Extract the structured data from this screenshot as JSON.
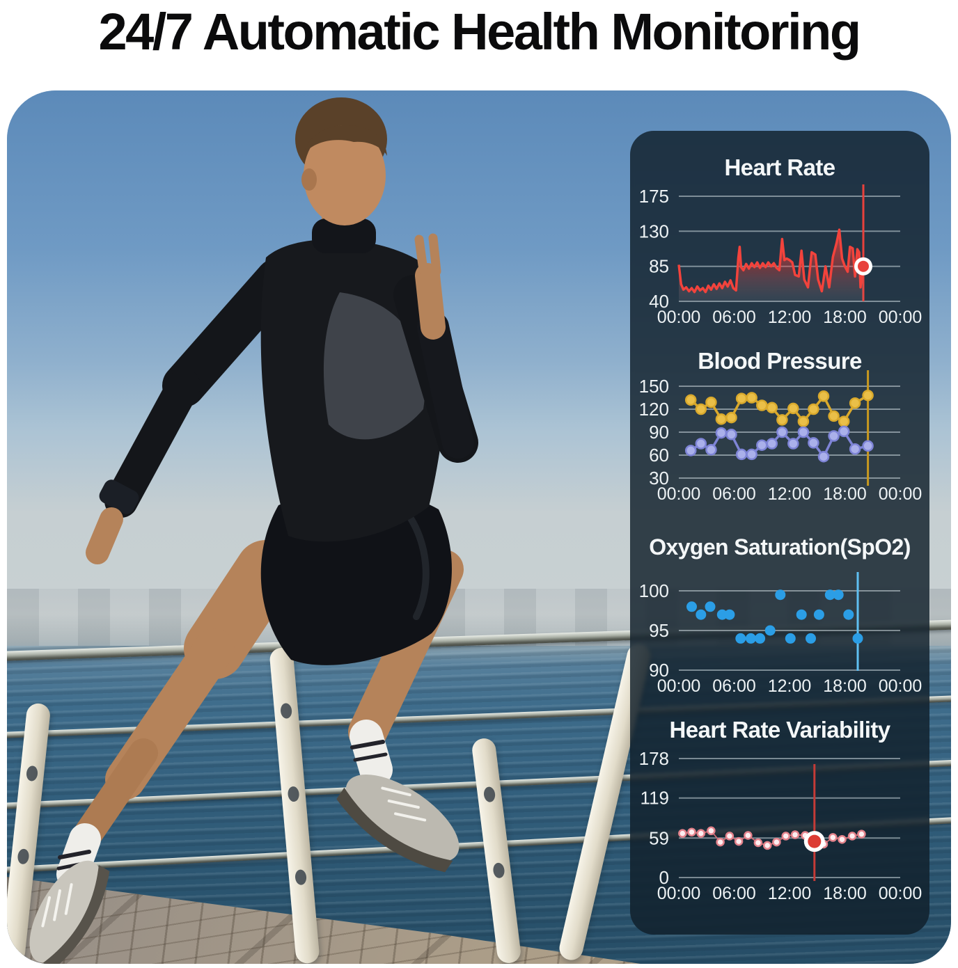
{
  "page": {
    "title": "24/7 Automatic Health Monitoring"
  },
  "panel": {
    "background": "rgba(16,30,42,0.82)"
  },
  "chart_data": [
    {
      "type": "area-line",
      "title": "Heart Rate",
      "y_ticks": [
        175,
        130,
        85,
        40
      ],
      "x_ticks": [
        "00:00",
        "06:00",
        "12:00",
        "18:00",
        "00:00"
      ],
      "x_range_hours": [
        0,
        24
      ],
      "grid": true,
      "series": [
        {
          "name": "heart-rate-bpm",
          "color": "#f2433c",
          "points": [
            [
              0,
              87
            ],
            [
              0.25,
              62
            ],
            [
              0.5,
              55
            ],
            [
              0.8,
              58
            ],
            [
              1.1,
              53
            ],
            [
              1.4,
              57
            ],
            [
              1.7,
              52
            ],
            [
              2,
              59
            ],
            [
              2.3,
              54
            ],
            [
              2.6,
              57
            ],
            [
              2.9,
              52
            ],
            [
              3.2,
              60
            ],
            [
              3.5,
              55
            ],
            [
              3.8,
              62
            ],
            [
              4.1,
              56
            ],
            [
              4.4,
              63
            ],
            [
              4.7,
              57
            ],
            [
              5,
              65
            ],
            [
              5.3,
              59
            ],
            [
              5.6,
              67
            ],
            [
              5.9,
              57
            ],
            [
              6.2,
              54
            ],
            [
              6.45,
              96
            ],
            [
              6.6,
              110
            ],
            [
              6.75,
              84
            ],
            [
              7,
              80
            ],
            [
              7.3,
              88
            ],
            [
              7.6,
              82
            ],
            [
              7.9,
              89
            ],
            [
              8.2,
              84
            ],
            [
              8.5,
              90
            ],
            [
              8.8,
              83
            ],
            [
              9.1,
              89
            ],
            [
              9.4,
              84
            ],
            [
              9.7,
              90
            ],
            [
              10,
              85
            ],
            [
              10.3,
              89
            ],
            [
              10.6,
              83
            ],
            [
              10.9,
              80
            ],
            [
              11.2,
              120
            ],
            [
              11.45,
              93
            ],
            [
              11.7,
              95
            ],
            [
              12,
              93
            ],
            [
              12.3,
              90
            ],
            [
              12.6,
              74
            ],
            [
              13,
              72
            ],
            [
              13.3,
              105
            ],
            [
              13.6,
              68
            ],
            [
              14,
              58
            ],
            [
              14.4,
              103
            ],
            [
              14.8,
              100
            ],
            [
              15.1,
              68
            ],
            [
              15.5,
              53
            ],
            [
              15.9,
              85
            ],
            [
              16.3,
              58
            ],
            [
              16.7,
              97
            ],
            [
              17.1,
              115
            ],
            [
              17.4,
              132
            ],
            [
              17.7,
              95
            ],
            [
              18,
              85
            ],
            [
              18.3,
              78
            ],
            [
              18.55,
              110
            ],
            [
              18.85,
              108
            ],
            [
              19.1,
              72
            ],
            [
              19.35,
              107
            ],
            [
              19.55,
              103
            ],
            [
              19.7,
              58
            ],
            [
              19.85,
              74
            ],
            [
              20,
              85
            ]
          ]
        }
      ],
      "cursor": {
        "x_hours": 20.0,
        "color": "#e8413c"
      },
      "marker": {
        "x_hours": 20.0,
        "value": 85,
        "fill": "#e8413c",
        "ring": "#ffffff",
        "outer_r": 13,
        "inner_r": 8
      }
    },
    {
      "type": "line-dots",
      "title": "Blood Pressure",
      "y_ticks": [
        150,
        120,
        90,
        60,
        30
      ],
      "x_ticks": [
        "00:00",
        "06:00",
        "12:00",
        "18:00",
        "00:00"
      ],
      "x_range_hours": [
        0,
        24
      ],
      "grid": true,
      "series": [
        {
          "name": "systolic",
          "color": "#d9a92c",
          "dot_fill": "#eabf48",
          "points": [
            [
              1.3,
              132
            ],
            [
              2.4,
              120
            ],
            [
              3.5,
              129
            ],
            [
              4.6,
              107
            ],
            [
              5.7,
              109
            ],
            [
              6.8,
              134
            ],
            [
              7.9,
              135
            ],
            [
              9.0,
              125
            ],
            [
              10.1,
              122
            ],
            [
              11.2,
              106
            ],
            [
              12.4,
              121
            ],
            [
              13.5,
              104
            ],
            [
              14.6,
              120
            ],
            [
              15.7,
              137
            ],
            [
              16.8,
              111
            ],
            [
              17.9,
              104
            ],
            [
              19.1,
              128
            ],
            [
              20.5,
              138
            ]
          ]
        },
        {
          "name": "diastolic",
          "color": "#7e84d6",
          "dot_fill": "#aab0ea",
          "points": [
            [
              1.3,
              66
            ],
            [
              2.4,
              75
            ],
            [
              3.5,
              67
            ],
            [
              4.6,
              89
            ],
            [
              5.7,
              87
            ],
            [
              6.8,
              61
            ],
            [
              7.9,
              61
            ],
            [
              9.0,
              73
            ],
            [
              10.1,
              75
            ],
            [
              11.2,
              90
            ],
            [
              12.4,
              75
            ],
            [
              13.5,
              90
            ],
            [
              14.6,
              76
            ],
            [
              15.7,
              58
            ],
            [
              16.8,
              85
            ],
            [
              17.9,
              91
            ],
            [
              19.1,
              68
            ],
            [
              20.5,
              72
            ]
          ]
        }
      ],
      "cursor": {
        "x_hours": 20.5,
        "color": "#c9991f"
      }
    },
    {
      "type": "scatter",
      "title": "Oxygen Saturation(SpO2)",
      "y_ticks": [
        100,
        95,
        90
      ],
      "x_ticks": [
        "00:00",
        "06:00",
        "12:00",
        "18:00",
        "00:00"
      ],
      "x_range_hours": [
        0,
        24
      ],
      "grid": true,
      "series": [
        {
          "name": "spo2-percent",
          "color": "#2b9ee6",
          "points": [
            [
              1.4,
              98
            ],
            [
              2.4,
              97
            ],
            [
              3.4,
              98
            ],
            [
              4.7,
              97
            ],
            [
              5.5,
              97
            ],
            [
              6.7,
              94
            ],
            [
              7.8,
              94
            ],
            [
              8.8,
              94
            ],
            [
              9.9,
              95
            ],
            [
              11.0,
              99.5
            ],
            [
              12.1,
              94
            ],
            [
              13.3,
              97
            ],
            [
              14.3,
              94
            ],
            [
              15.2,
              97
            ],
            [
              16.4,
              99.5
            ],
            [
              17.3,
              99.5
            ],
            [
              18.4,
              97
            ],
            [
              19.4,
              94
            ]
          ]
        }
      ],
      "cursor": {
        "x_hours": 19.4,
        "color": "#5fc0f2"
      }
    },
    {
      "type": "line-dots",
      "title": "Heart Rate Variability",
      "y_ticks": [
        178,
        119,
        59,
        0
      ],
      "x_ticks": [
        "00:00",
        "06:00",
        "12:00",
        "18:00",
        "00:00"
      ],
      "x_range_hours": [
        0,
        24
      ],
      "grid": true,
      "series": [
        {
          "name": "hrv-ms",
          "color": "#d06a73",
          "dot_fill": "#fdeef0",
          "dot_ring": "#e4838c",
          "points": [
            [
              0.4,
              66
            ],
            [
              1.4,
              68
            ],
            [
              2.4,
              66
            ],
            [
              3.5,
              70
            ],
            [
              4.5,
              53
            ],
            [
              5.5,
              62
            ],
            [
              6.5,
              54
            ],
            [
              7.5,
              63
            ],
            [
              8.6,
              52
            ],
            [
              9.6,
              48
            ],
            [
              10.6,
              53
            ],
            [
              11.6,
              62
            ],
            [
              12.6,
              64
            ],
            [
              13.7,
              63
            ],
            [
              14.7,
              54
            ],
            [
              15.7,
              50
            ],
            [
              16.7,
              60
            ],
            [
              17.7,
              57
            ],
            [
              18.8,
              62
            ],
            [
              19.8,
              65
            ]
          ]
        }
      ],
      "cursor": {
        "x_hours": 14.7,
        "color": "#c43b37"
      },
      "marker": {
        "x_hours": 14.7,
        "value": 54,
        "fill": "#dc3c34",
        "ring": "#ffffff",
        "outer_r": 15,
        "inner_r": 9.5
      }
    }
  ]
}
